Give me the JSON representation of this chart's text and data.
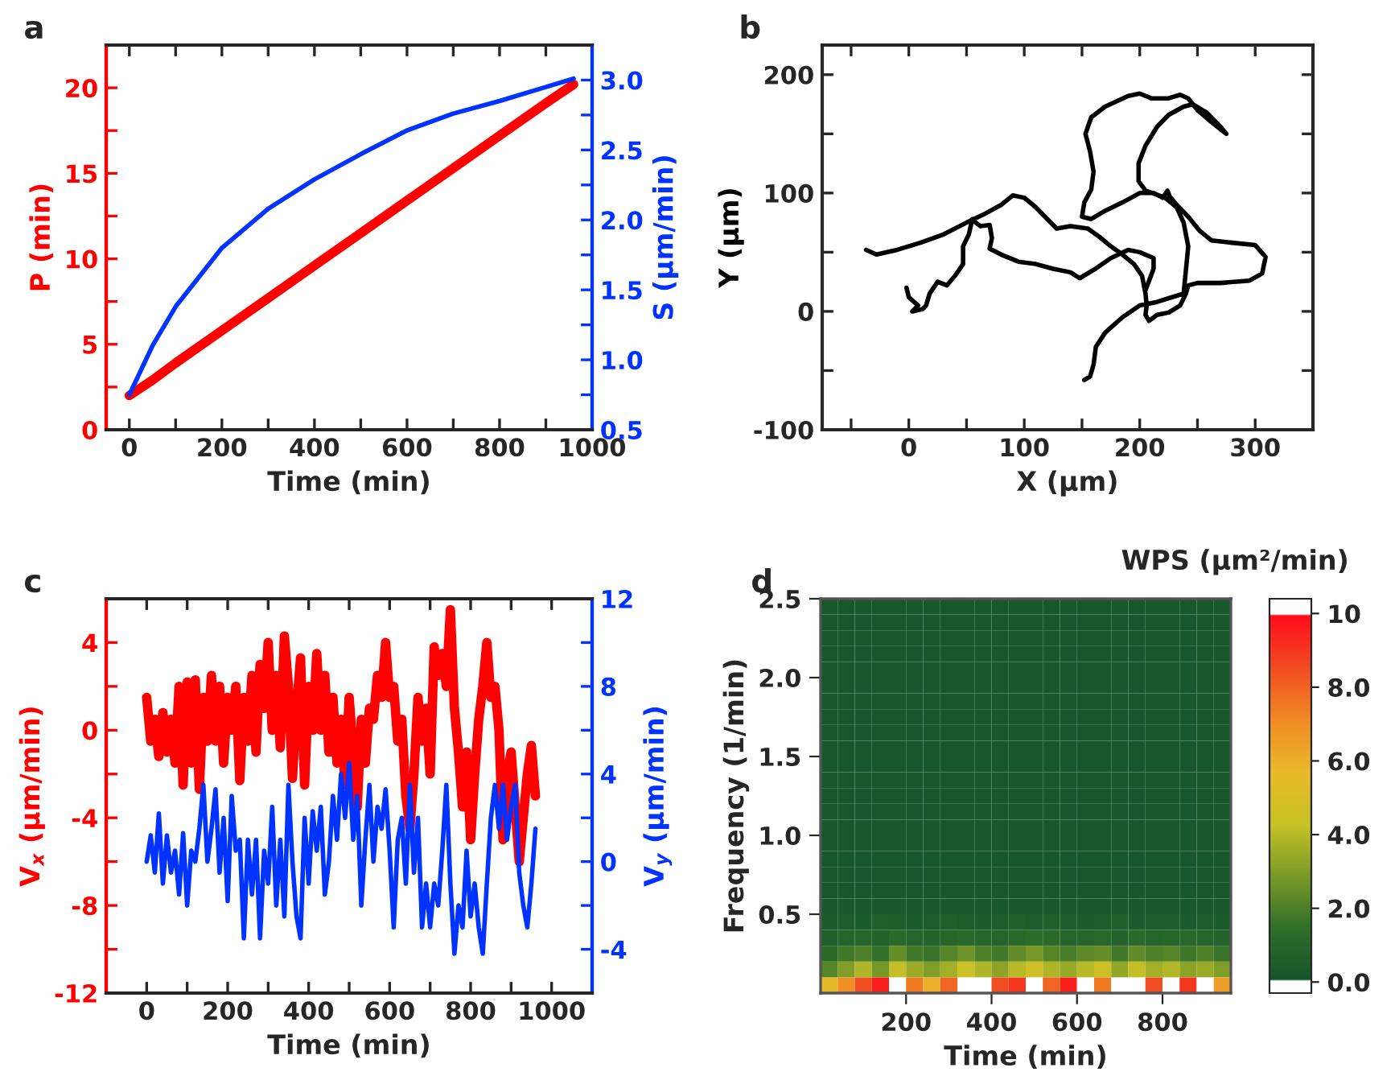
{
  "chart_data": [
    {
      "type": "line",
      "title": "a",
      "xlabel": "Time (min)",
      "ylabel": "P (min)",
      "y2label": "S (μm/min)",
      "x": [
        0,
        50,
        100,
        200,
        300,
        400,
        500,
        600,
        700,
        800,
        900,
        960
      ],
      "series": [
        {
          "color": "#ff0000",
          "values": [
            2.0,
            2.9,
            3.9,
            5.8,
            7.7,
            9.6,
            11.5,
            13.4,
            15.3,
            17.2,
            19.1,
            20.2
          ]
        },
        {
          "color": "#0033ff",
          "axis": "y2",
          "values": [
            0.75,
            1.1,
            1.38,
            1.8,
            2.08,
            2.29,
            2.47,
            2.64,
            2.76,
            2.85,
            2.95,
            3.01
          ]
        }
      ],
      "xlim": [
        -50,
        1000
      ],
      "xticks": [
        0,
        {
          "value": 100,
          "label": null
        },
        200,
        {
          "value": 300,
          "label": null
        },
        400,
        {
          "value": 500,
          "label": null
        },
        600,
        {
          "value": 700,
          "label": null
        },
        800,
        {
          "value": 900,
          "label": null
        },
        1000
      ],
      "ylim": [
        0,
        22.5
      ],
      "yticks": [
        0,
        {
          "value": 2.5,
          "label": null
        },
        5,
        {
          "value": 7.5,
          "label": null
        },
        10,
        {
          "value": 12.5,
          "label": null
        },
        15,
        {
          "value": 17.5,
          "label": null
        },
        20
      ],
      "y2lim": [
        0.5,
        3.25
      ],
      "y2ticks": [
        0.5,
        {
          "value": 0.75,
          "label": null
        },
        {
          "value": 1,
          "label": "1.0"
        },
        {
          "value": 1.25,
          "label": null
        },
        1.5,
        {
          "value": 1.75,
          "label": null
        },
        {
          "value": 2,
          "label": "2.0"
        },
        {
          "value": 2.25,
          "label": null
        },
        2.5,
        {
          "value": 2.75,
          "label": null
        },
        {
          "value": 3,
          "label": "3.0"
        }
      ]
    },
    {
      "type": "line",
      "title": "b",
      "xlabel": "X (μm)",
      "ylabel": "Y (μm)",
      "series": [
        {
          "color": "#000000",
          "x": [
            -37,
            -28,
            -10,
            10,
            30,
            50,
            65,
            80,
            90,
            100,
            110,
            120,
            128,
            140,
            155,
            165,
            175,
            185,
            195,
            202,
            205,
            206,
            205,
            208,
            215,
            225,
            235,
            240,
            242,
            250,
            270,
            295,
            306,
            309,
            300,
            280,
            262,
            252,
            242,
            232,
            226,
            224,
            220,
            212,
            200,
            185,
            170,
            158,
            150,
            152,
            158,
            160,
            157,
            153,
            158,
            170,
            190,
            200,
            210,
            225,
            235,
            242,
            250,
            262,
            275,
            270,
            258,
            246,
            238,
            225,
            215,
            205,
            199,
            199,
            205,
            222,
            232,
            238,
            242,
            240,
            238,
            228,
            215,
            200,
            185,
            170,
            162,
            160,
            157,
            152
          ],
          "values": [
            52,
            48,
            52,
            58,
            65,
            75,
            82,
            90,
            98,
            96,
            88,
            78,
            70,
            72,
            70,
            63,
            55,
            48,
            40,
            30,
            15,
            5,
            -3,
            -8,
            -3,
            -1,
            5,
            15,
            22,
            24,
            24,
            26,
            32,
            46,
            56,
            58,
            60,
            68,
            80,
            90,
            97,
            102,
            96,
            100,
            100,
            92,
            85,
            78,
            80,
            92,
            103,
            118,
            135,
            150,
            164,
            173,
            182,
            184,
            180,
            180,
            183,
            180,
            170,
            160,
            150,
            156,
            168,
            175,
            173,
            166,
            156,
            140,
            125,
            110,
            102,
            96,
            88,
            75,
            55,
            35,
            15,
            12,
            8,
            5,
            -5,
            -18,
            -30,
            -45,
            -55,
            -58
          ]
        },
        {
          "color": "#000000",
          "x": [
            -2,
            0,
            8,
            3,
            12,
            15,
            18,
            25,
            33,
            40,
            47,
            47,
            52,
            55,
            58,
            62,
            70,
            72,
            70,
            80,
            95,
            110,
            125,
            140,
            148,
            160,
            175,
            190,
            200,
            212,
            212,
            205
          ],
          "values": [
            20,
            12,
            5,
            0,
            2,
            5,
            15,
            25,
            22,
            30,
            40,
            55,
            65,
            78,
            75,
            72,
            73,
            62,
            53,
            48,
            42,
            40,
            36,
            33,
            28,
            35,
            45,
            52,
            50,
            45,
            36,
            18
          ]
        }
      ],
      "xlim": [
        -75,
        350
      ],
      "xticks": [
        {
          "value": -50,
          "label": null
        },
        0,
        {
          "value": 50,
          "label": null
        },
        100,
        {
          "value": 150,
          "label": null
        },
        200,
        {
          "value": 250,
          "label": null
        },
        300
      ],
      "ylim": [
        -100,
        225
      ],
      "yticks": [
        -100,
        {
          "value": -50,
          "label": null
        },
        0,
        {
          "value": 50,
          "label": null
        },
        100,
        {
          "value": 150,
          "label": null
        },
        200
      ]
    },
    {
      "type": "line",
      "title": "c",
      "xlabel": "Time (min)",
      "ylabel": "V$_{x}$ (μm/min)",
      "y2label": "V$_{y}$ (μm/min)",
      "x": [
        0,
        10,
        20,
        30,
        40,
        50,
        60,
        70,
        80,
        90,
        100,
        110,
        120,
        130,
        140,
        150,
        160,
        170,
        180,
        190,
        200,
        210,
        220,
        230,
        240,
        250,
        260,
        270,
        280,
        290,
        300,
        310,
        320,
        330,
        340,
        350,
        360,
        370,
        380,
        390,
        400,
        410,
        420,
        430,
        440,
        450,
        460,
        470,
        480,
        490,
        500,
        510,
        520,
        530,
        540,
        550,
        560,
        570,
        580,
        590,
        600,
        610,
        620,
        630,
        640,
        650,
        660,
        670,
        680,
        690,
        700,
        710,
        720,
        730,
        740,
        750,
        760,
        770,
        780,
        790,
        800,
        810,
        820,
        830,
        840,
        850,
        860,
        870,
        880,
        890,
        900,
        910,
        920,
        930,
        940,
        950,
        960
      ],
      "series": [
        {
          "color": "#ff0000",
          "values": [
            1.5,
            -0.5,
            0.5,
            -1.2,
            0.8,
            -1,
            0.5,
            -1.5,
            2,
            -2.5,
            2.2,
            -1.5,
            2.3,
            -2.7,
            1.5,
            -0.5,
            2.5,
            -0.5,
            2,
            -1.5,
            1.5,
            0,
            2,
            -2.3,
            1.5,
            -0.5,
            2.5,
            -1,
            3,
            1,
            4,
            0,
            2.5,
            -0.8,
            4.3,
            2,
            -2.2,
            1,
            3.3,
            -2.5,
            2,
            0,
            3.5,
            0,
            2.5,
            -1,
            1.5,
            -1.5,
            0.5,
            -2.5,
            1.5,
            -1,
            -3.5,
            0.5,
            -1.5,
            1,
            0.5,
            2.5,
            1.5,
            4,
            1.5,
            2,
            -0.5,
            0.5,
            -3,
            -4.5,
            -2,
            1.5,
            -0.5,
            1,
            -2,
            3.8,
            2.5,
            3.5,
            2,
            5.5,
            1,
            -1,
            -3.5,
            -1,
            -5,
            -2,
            0.5,
            2,
            4,
            1.5,
            2,
            0,
            -5,
            -2,
            -1,
            -3.5,
            -6,
            -4,
            -2,
            -0.7,
            -3
          ]
        },
        {
          "color": "#0033ff",
          "axis": "y2",
          "values": [
            0,
            1.2,
            -0.5,
            2.2,
            -1,
            1.2,
            -0.5,
            0.5,
            -1.5,
            1.3,
            -2,
            0.5,
            0,
            1.5,
            3.5,
            0,
            1.5,
            3.3,
            -0.5,
            2,
            -1.8,
            3,
            0.5,
            1,
            -3.5,
            1,
            -1.5,
            1,
            -3.5,
            0.5,
            -1,
            2.5,
            -2,
            1,
            -2.5,
            3.5,
            0,
            -2.5,
            -3.5,
            2,
            -1,
            2.3,
            0.5,
            2.5,
            -1.5,
            0,
            3,
            1,
            4,
            2,
            4.5,
            1,
            3,
            -2,
            1,
            3.5,
            0,
            2.5,
            1.5,
            3.3,
            0.5,
            -3,
            1,
            2,
            -1,
            3.5,
            -0.5,
            2,
            -3,
            -1,
            -3,
            -1,
            -2,
            0.5,
            3.5,
            -1,
            -4.2,
            -2,
            -3,
            0.5,
            -2.5,
            -1,
            -3,
            -4.2,
            -1,
            2,
            3.5,
            1.5,
            3.5,
            1,
            2.5,
            3.5,
            -0.5,
            -2,
            -3,
            -1,
            1.5
          ]
        }
      ],
      "xlim": [
        -100,
        1100
      ],
      "xticks": [
        0,
        {
          "value": 100,
          "label": null
        },
        200,
        {
          "value": 300,
          "label": null
        },
        400,
        {
          "value": 500,
          "label": null
        },
        600,
        {
          "value": 700,
          "label": null
        },
        800,
        {
          "value": 900,
          "label": null
        },
        1000
      ],
      "ylim": [
        -12,
        6
      ],
      "yticks": [
        -12,
        {
          "value": -10,
          "label": null
        },
        -8,
        {
          "value": -6,
          "label": null
        },
        -4,
        {
          "value": -2,
          "label": null
        },
        0,
        {
          "value": 2,
          "label": null
        },
        4
      ],
      "y2lim": [
        -6,
        12
      ],
      "y2ticks": [
        -4,
        {
          "value": -2,
          "label": null
        },
        0,
        {
          "value": 2,
          "label": null
        },
        4,
        {
          "value": 6,
          "label": null
        },
        8,
        {
          "value": 10,
          "label": null
        },
        12
      ]
    },
    {
      "type": "heatmap",
      "title": "d",
      "xlabel": "Time (min)",
      "ylabel": "Frequency (1/min)",
      "clabel": "WPS (μm²/min)",
      "x": [
        20,
        60,
        100,
        140,
        180,
        220,
        260,
        300,
        340,
        380,
        420,
        460,
        500,
        540,
        580,
        620,
        660,
        700,
        740,
        780,
        820,
        860,
        900,
        940
      ],
      "y": [
        2.45,
        2.35,
        2.25,
        2.15,
        2.05,
        1.95,
        1.85,
        1.75,
        1.65,
        1.55,
        1.45,
        1.35,
        1.25,
        1.15,
        1.05,
        0.95,
        0.85,
        0.75,
        0.65,
        0.55,
        0.45,
        0.35,
        0.25,
        0.15,
        0.05
      ],
      "cells": [
        [
          0.2,
          0.2,
          0.2,
          0.2,
          0.2,
          0.2,
          0.2,
          0.2,
          0.2,
          0.2,
          0.2,
          0.2,
          0.2,
          0.2,
          0.2,
          0.2,
          0.2,
          0.2,
          0.2,
          0.2,
          0.2,
          0.2,
          0.2,
          0.2
        ],
        [
          0.2,
          0.2,
          0.2,
          0.2,
          0.2,
          0.2,
          0.2,
          0.2,
          0.2,
          0.2,
          0.2,
          0.2,
          0.2,
          0.2,
          0.2,
          0.2,
          0.2,
          0.2,
          0.2,
          0.2,
          0.2,
          0.2,
          0.2,
          0.2
        ],
        [
          0.2,
          0.2,
          0.2,
          0.2,
          0.2,
          0.2,
          0.2,
          0.2,
          0.2,
          0.2,
          0.2,
          0.2,
          0.2,
          0.2,
          0.2,
          0.2,
          0.2,
          0.2,
          0.2,
          0.2,
          0.2,
          0.2,
          0.2,
          0.2
        ],
        [
          0.2,
          0.2,
          0.2,
          0.2,
          0.2,
          0.2,
          0.2,
          0.2,
          0.2,
          0.2,
          0.2,
          0.2,
          0.2,
          0.2,
          0.2,
          0.2,
          0.2,
          0.2,
          0.2,
          0.2,
          0.2,
          0.2,
          0.2,
          0.2
        ],
        [
          0.2,
          0.2,
          0.2,
          0.2,
          0.2,
          0.2,
          0.2,
          0.2,
          0.2,
          0.2,
          0.2,
          0.2,
          0.2,
          0.2,
          0.2,
          0.2,
          0.2,
          0.2,
          0.2,
          0.2,
          0.2,
          0.2,
          0.2,
          0.2
        ],
        [
          0.2,
          0.2,
          0.2,
          0.2,
          0.2,
          0.2,
          0.2,
          0.2,
          0.2,
          0.2,
          0.2,
          0.2,
          0.2,
          0.2,
          0.2,
          0.2,
          0.2,
          0.2,
          0.2,
          0.2,
          0.2,
          0.2,
          0.2,
          0.2
        ],
        [
          0.2,
          0.2,
          0.2,
          0.2,
          0.2,
          0.2,
          0.2,
          0.2,
          0.2,
          0.2,
          0.2,
          0.2,
          0.2,
          0.2,
          0.2,
          0.2,
          0.2,
          0.2,
          0.2,
          0.2,
          0.2,
          0.2,
          0.2,
          0.2
        ],
        [
          0.2,
          0.2,
          0.2,
          0.2,
          0.2,
          0.2,
          0.2,
          0.2,
          0.2,
          0.2,
          0.2,
          0.2,
          0.2,
          0.2,
          0.2,
          0.2,
          0.2,
          0.2,
          0.2,
          0.2,
          0.2,
          0.2,
          0.2,
          0.2
        ],
        [
          0.2,
          0.2,
          0.2,
          0.2,
          0.2,
          0.2,
          0.2,
          0.2,
          0.2,
          0.2,
          0.2,
          0.2,
          0.2,
          0.2,
          0.2,
          0.2,
          0.2,
          0.2,
          0.2,
          0.2,
          0.2,
          0.2,
          0.2,
          0.2
        ],
        [
          0.2,
          0.2,
          0.2,
          0.2,
          0.2,
          0.2,
          0.2,
          0.2,
          0.2,
          0.2,
          0.2,
          0.2,
          0.2,
          0.2,
          0.2,
          0.2,
          0.2,
          0.2,
          0.2,
          0.2,
          0.2,
          0.2,
          0.2,
          0.2
        ],
        [
          0.2,
          0.2,
          0.2,
          0.2,
          0.2,
          0.2,
          0.2,
          0.2,
          0.2,
          0.2,
          0.2,
          0.2,
          0.2,
          0.2,
          0.2,
          0.2,
          0.2,
          0.2,
          0.2,
          0.2,
          0.2,
          0.2,
          0.2,
          0.2
        ],
        [
          0.2,
          0.2,
          0.2,
          0.2,
          0.2,
          0.2,
          0.2,
          0.2,
          0.2,
          0.2,
          0.2,
          0.2,
          0.2,
          0.2,
          0.2,
          0.2,
          0.2,
          0.2,
          0.2,
          0.2,
          0.2,
          0.2,
          0.2,
          0.2
        ],
        [
          0.2,
          0.2,
          0.2,
          0.2,
          0.2,
          0.2,
          0.2,
          0.2,
          0.2,
          0.2,
          0.2,
          0.2,
          0.2,
          0.2,
          0.2,
          0.2,
          0.2,
          0.2,
          0.2,
          0.2,
          0.2,
          0.2,
          0.2,
          0.2
        ],
        [
          0.2,
          0.2,
          0.2,
          0.2,
          0.2,
          0.2,
          0.2,
          0.2,
          0.2,
          0.2,
          0.2,
          0.2,
          0.2,
          0.2,
          0.2,
          0.2,
          0.2,
          0.2,
          0.2,
          0.2,
          0.2,
          0.2,
          0.2,
          0.2
        ],
        [
          0.2,
          0.2,
          0.2,
          0.2,
          0.2,
          0.2,
          0.2,
          0.2,
          0.2,
          0.2,
          0.2,
          0.2,
          0.2,
          0.2,
          0.2,
          0.2,
          0.2,
          0.2,
          0.2,
          0.2,
          0.2,
          0.2,
          0.2,
          0.2
        ],
        [
          0.2,
          0.2,
          0.2,
          0.2,
          0.2,
          0.2,
          0.2,
          0.2,
          0.2,
          0.2,
          0.2,
          0.2,
          0.2,
          0.2,
          0.2,
          0.2,
          0.2,
          0.2,
          0.2,
          0.2,
          0.2,
          0.2,
          0.2,
          0.2
        ],
        [
          0.2,
          0.2,
          0.2,
          0.2,
          0.2,
          0.2,
          0.2,
          0.2,
          0.2,
          0.2,
          0.2,
          0.2,
          0.2,
          0.2,
          0.2,
          0.2,
          0.2,
          0.2,
          0.2,
          0.2,
          0.2,
          0.2,
          0.2,
          0.2
        ],
        [
          0.2,
          0.2,
          0.2,
          0.2,
          0.2,
          0.2,
          0.2,
          0.2,
          0.2,
          0.2,
          0.2,
          0.2,
          0.2,
          0.2,
          0.2,
          0.2,
          0.2,
          0.2,
          0.2,
          0.2,
          0.2,
          0.2,
          0.2,
          0.2
        ],
        [
          0.2,
          0.2,
          0.2,
          0.2,
          0.2,
          0.2,
          0.2,
          0.2,
          0.2,
          0.2,
          0.2,
          0.2,
          0.2,
          0.2,
          0.2,
          0.2,
          0.2,
          0.2,
          0.2,
          0.2,
          0.2,
          0.2,
          0.2,
          0.2
        ],
        [
          0.3,
          0.3,
          0.3,
          0.3,
          0.3,
          0.3,
          0.3,
          0.3,
          0.3,
          0.3,
          0.3,
          0.3,
          0.3,
          0.3,
          0.3,
          0.3,
          0.3,
          0.3,
          0.3,
          0.3,
          0.3,
          0.3,
          0.3,
          0.3
        ],
        [
          0.4,
          0.5,
          0.4,
          0.6,
          0.5,
          0.4,
          0.5,
          0.6,
          0.5,
          0.4,
          0.5,
          0.6,
          0.5,
          0.7,
          0.5,
          0.4,
          0.5,
          0.6,
          0.4,
          0.5,
          0.5,
          0.4,
          0.5,
          0.4
        ],
        [
          0.7,
          0.9,
          1.0,
          0.8,
          1.2,
          0.9,
          0.8,
          1.0,
          1.2,
          1.0,
          0.9,
          1.1,
          1.3,
          1.2,
          0.9,
          1.0,
          1.1,
          0.8,
          1.2,
          0.9,
          1.0,
          1.1,
          0.9,
          0.8
        ],
        [
          1.2,
          1.8,
          2.0,
          1.5,
          2.5,
          1.8,
          1.6,
          2.2,
          2.6,
          2.0,
          1.8,
          2.4,
          2.8,
          2.2,
          1.9,
          2.3,
          2.5,
          1.8,
          2.4,
          2.0,
          2.2,
          1.7,
          2.0,
          1.6
        ],
        [
          2.2,
          3.0,
          3.8,
          2.8,
          4.2,
          3.5,
          3.0,
          3.6,
          4.5,
          3.8,
          3.2,
          4.0,
          4.6,
          3.8,
          3.4,
          4.0,
          4.4,
          3.3,
          4.2,
          3.6,
          3.9,
          3.2,
          3.5,
          3.0
        ],
        [
          5.5,
          7.0,
          8.5,
          9.5,
          10.2,
          7.5,
          6.0,
          8.0,
          10.2,
          10.2,
          8.5,
          9.0,
          10.2,
          8.0,
          9.5,
          10.2,
          7.5,
          10.2,
          10.2,
          8.5,
          10.2,
          9.0,
          10.2,
          6.5
        ]
      ],
      "xlim": [
        0,
        960
      ],
      "xticks": [
        200,
        400,
        600,
        800
      ],
      "ylim": [
        0,
        2.5
      ],
      "yticks": [
        0.5,
        {
          "value": 1,
          "label": "1.0"
        },
        1.5,
        {
          "value": 2,
          "label": "2.0"
        },
        2.5
      ],
      "clim": [
        -0.3,
        10.4
      ],
      "cticks": [
        {
          "value": 0,
          "label": "0.0"
        },
        {
          "value": 2,
          "label": "2.0"
        },
        {
          "value": 4,
          "label": "4.0"
        },
        {
          "value": 6,
          "label": "6.0"
        },
        {
          "value": 8,
          "label": "8.0"
        },
        10
      ]
    }
  ]
}
